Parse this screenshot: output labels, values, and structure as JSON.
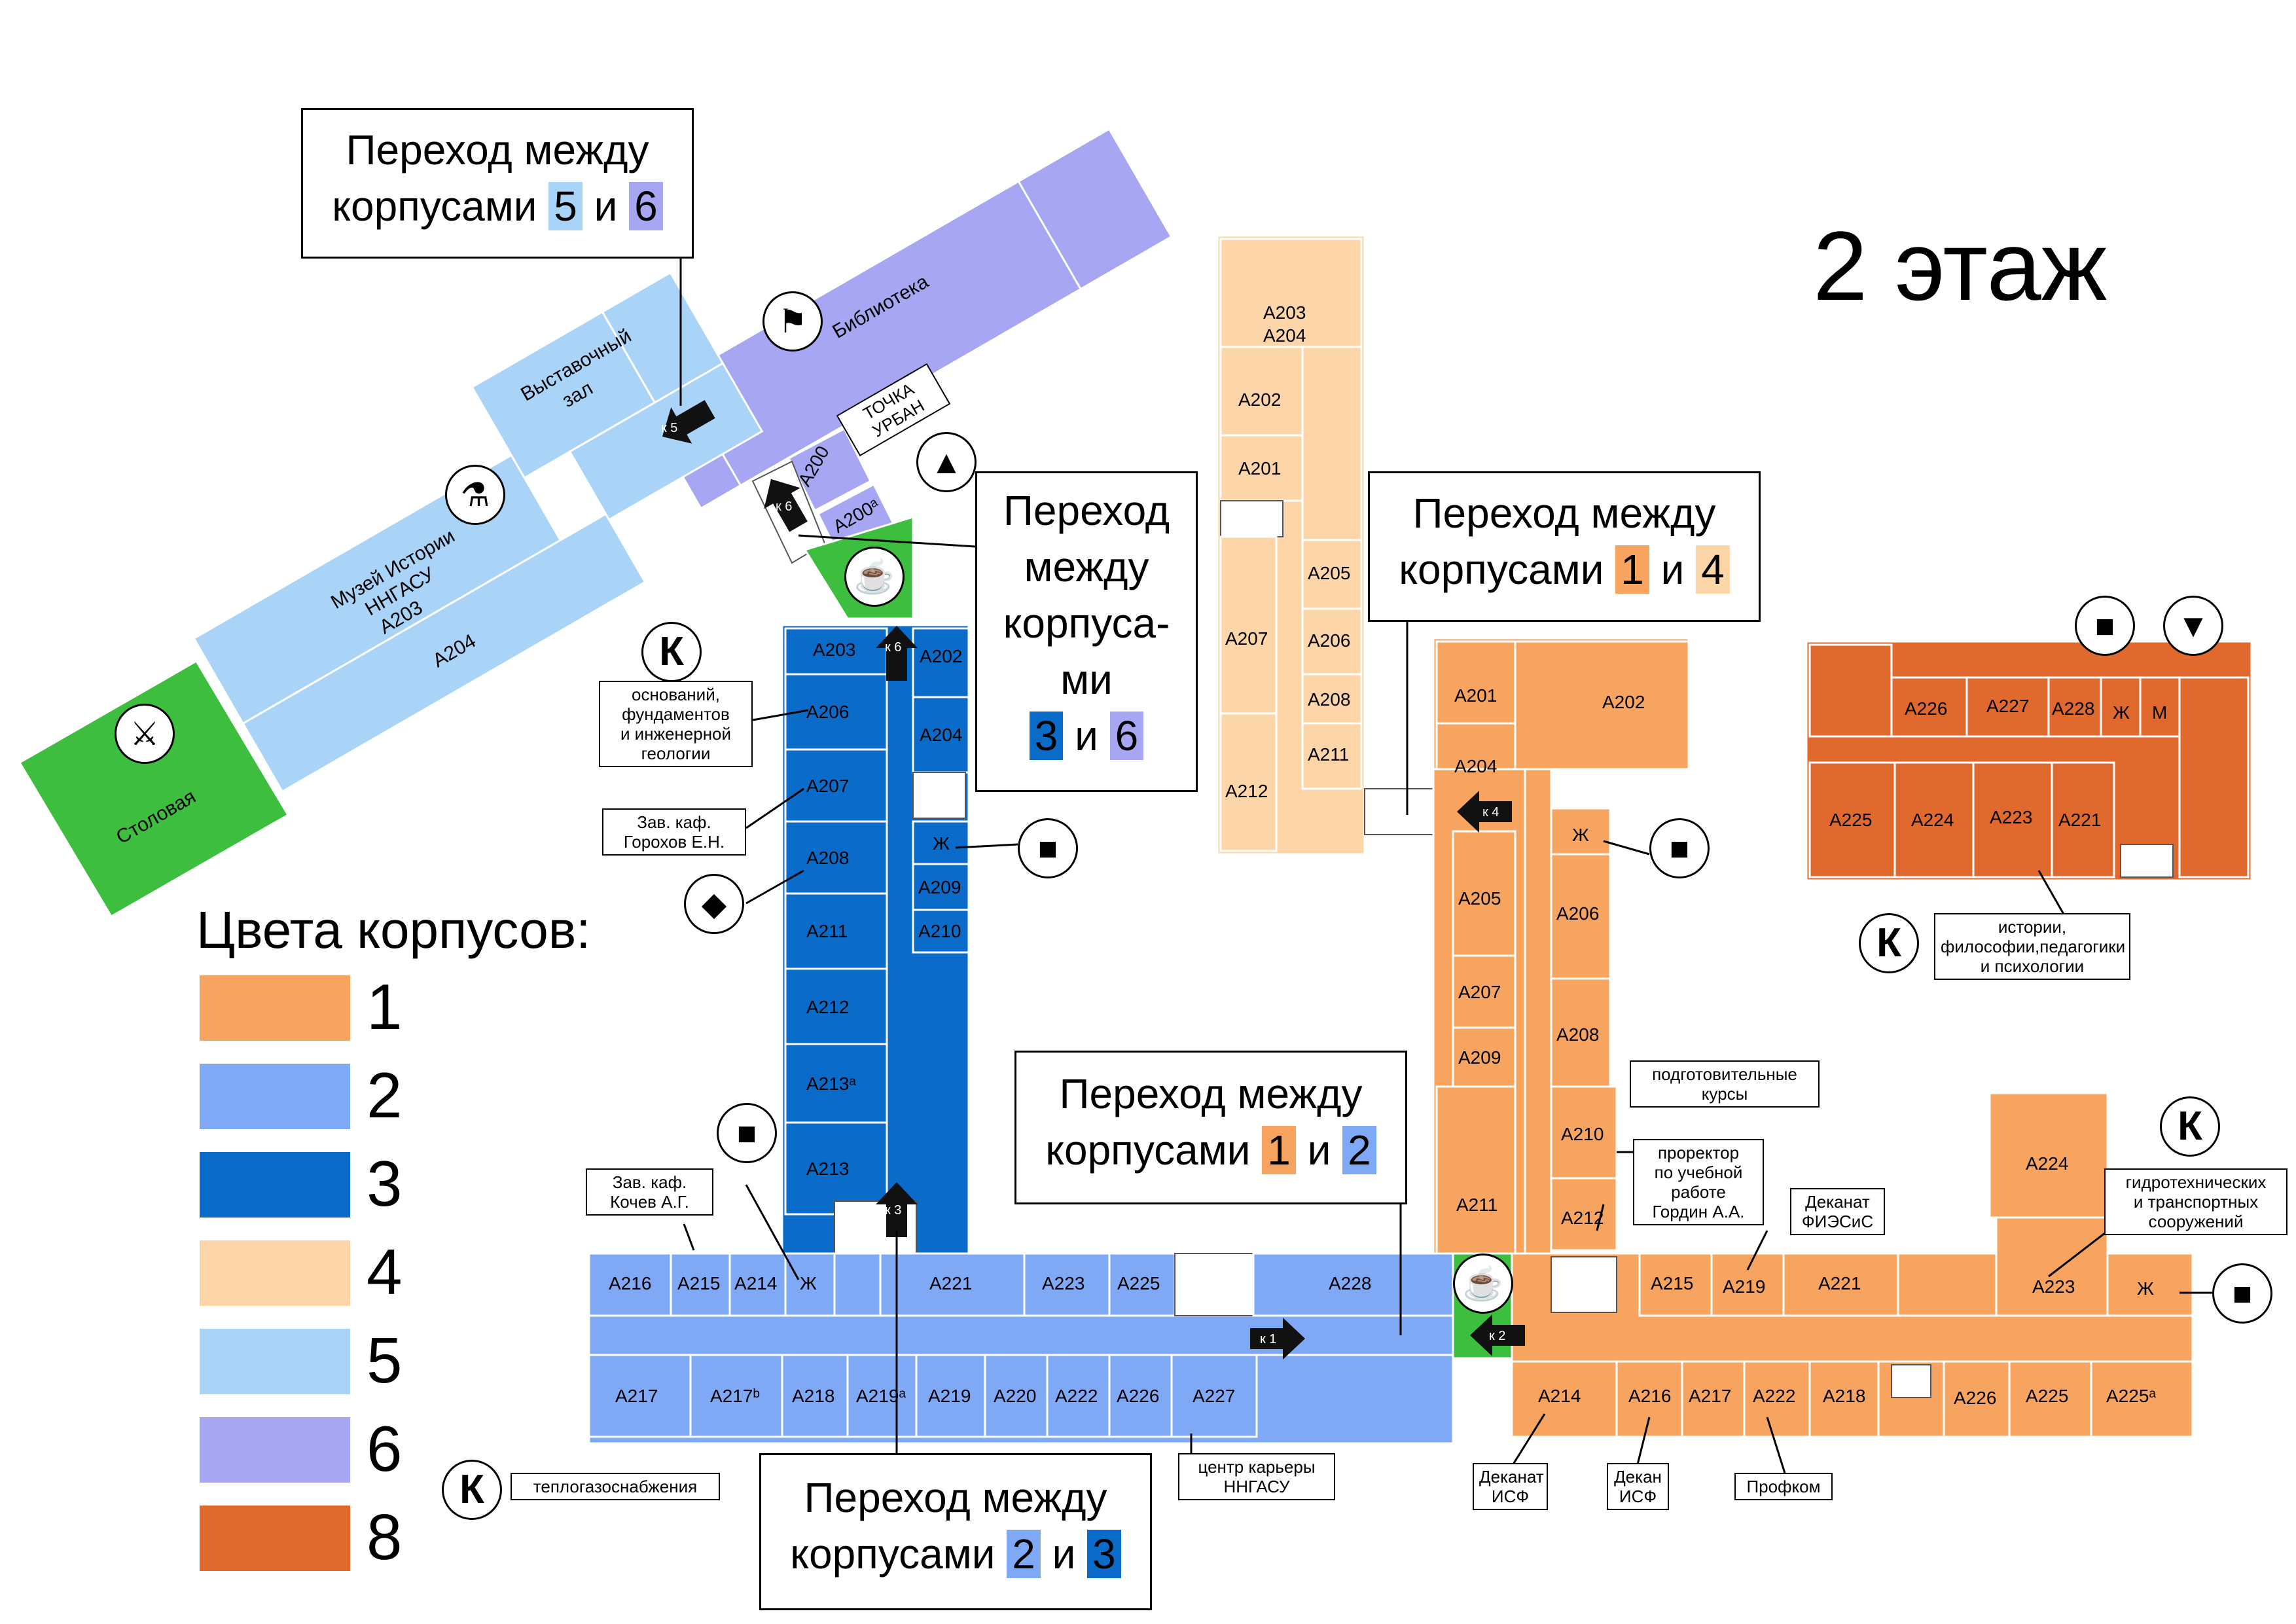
{
  "floor_title": "2 этаж",
  "legend": {
    "title": "Цвета корпусов:",
    "items": [
      {
        "label": "1",
        "color": "#F7A460"
      },
      {
        "label": "2",
        "color": "#7FA8F5"
      },
      {
        "label": "3",
        "color": "#0A6BC8"
      },
      {
        "label": "4",
        "color": "#FCD5A8"
      },
      {
        "label": "5",
        "color": "#A9D4F8"
      },
      {
        "label": "6",
        "color": "#A6A6F2"
      },
      {
        "label": "8",
        "color": "#E0692E"
      }
    ]
  },
  "callouts": {
    "c56": {
      "line1": "Переход между",
      "prefix": "корпусами",
      "a": "5",
      "and": "и",
      "b": "6"
    },
    "c36": {
      "line1": "Переход",
      "line2": "между",
      "line3": "корпуса-",
      "line4": "ми",
      "a": "3",
      "and": "и",
      "b": "6"
    },
    "c14": {
      "line1": "Переход между",
      "prefix": "корпусами",
      "a": "1",
      "and": "и",
      "b": "4"
    },
    "c12": {
      "line1": "Переход между",
      "prefix": "корпусами",
      "a": "1",
      "and": "и",
      "b": "2"
    },
    "c23": {
      "line1": "Переход между",
      "prefix": "корпусами",
      "a": "2",
      "and": "и",
      "b": "3"
    }
  },
  "notes": {
    "osnovaniy": [
      "оснований,",
      "фундаментов",
      "и инженерной",
      "геологии"
    ],
    "gorohov": [
      "Зав. каф.",
      "Горохов Е.Н."
    ],
    "kochev": [
      "Зав. каф.",
      "Кочев А.Г."
    ],
    "teplo": [
      "теплогазоснабжения"
    ],
    "karera": [
      "центр карьеры",
      "ННГАСУ"
    ],
    "podgot": [
      "подготовительные",
      "курсы"
    ],
    "prorektor": [
      "проректор",
      "по учебной",
      "работе",
      "Гордин А.А."
    ],
    "fiesis": [
      "Деканат",
      "ФИЭСиС"
    ],
    "dekanat_isf": [
      "Деканат",
      "ИСФ"
    ],
    "dekan_isf": [
      "Декан",
      "ИСФ"
    ],
    "profkom": [
      "Профком"
    ],
    "istorii": [
      "истории,",
      "философии,педагогики",
      "и психологии"
    ],
    "gidro": [
      "гидротехнических",
      "и транспортных",
      "сооружений"
    ],
    "tochka": [
      "ТОЧКА",
      "УРБАН"
    ]
  },
  "building_labels": {
    "biblioteka": "Библиотека",
    "vystavochny": "Выставочный",
    "zal": "зал",
    "muzey1": "Музей Истории",
    "muzey2": "ННГАСУ",
    "muzey3": "А203",
    "a204_5": "А204",
    "stolovaya": "Столовая",
    "a200": "А200",
    "a200a": "А200ᵃ"
  },
  "markers": {
    "k1": "к 1",
    "k2": "к 2",
    "k3": "к 3",
    "k4": "к 4",
    "k5": "к 5",
    "k6a": "к 6",
    "k6b": "к 6"
  },
  "icons": {
    "k_letter": "К",
    "zh": "Ж",
    "m": "М"
  },
  "rooms_b3": [
    "А203",
    "А202",
    "А206",
    "А204",
    "А207",
    "Ж",
    "А208",
    "А209",
    "А211",
    "А210",
    "А212",
    "А213ᵃ",
    "А213"
  ],
  "rooms_b2": [
    "А216",
    "А215",
    "А214",
    "Ж",
    "А221",
    "А223",
    "А225",
    "А228",
    "А217",
    "А217ᵇ",
    "А218",
    "А219ᵃ",
    "А219",
    "А220",
    "А222",
    "А226",
    "А227"
  ],
  "rooms_b4": [
    "А203",
    "А204",
    "А202",
    "А201",
    "А205",
    "А206",
    "А207",
    "А208",
    "А211",
    "А212"
  ],
  "rooms_b1": [
    "А201",
    "А202",
    "А204",
    "Ж",
    "А205",
    "А206",
    "А207",
    "А208",
    "А209",
    "А210",
    "А211",
    "А212",
    "А215",
    "А219",
    "А221",
    "А223",
    "Ж",
    "А214",
    "А216",
    "А217",
    "А222",
    "А218",
    "А226",
    "А225",
    "А225ᵃ",
    "А224"
  ],
  "rooms_b8": [
    "А226",
    "А227",
    "А228",
    "Ж",
    "М",
    "А225",
    "А224",
    "А223",
    "А221"
  ]
}
